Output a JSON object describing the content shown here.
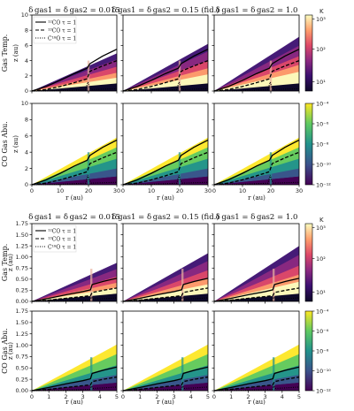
{
  "chart_data": [
    {
      "type": "heatmap",
      "block": "top",
      "row_labels": [
        "Gas Temp.",
        "CO Gas Abu."
      ],
      "col_titles": [
        "δgas1 = δgas2 = 0.015",
        "δgas1 = δgas2 = 0.15 (fid.)",
        "δgas1 = δgas2 = 1.0"
      ],
      "xlabel": "r (au)",
      "ylabel": "z (au)",
      "xlim": [
        0,
        30
      ],
      "ylim_temp": [
        0,
        10
      ],
      "ylim_abu": [
        0,
        10
      ],
      "x_ticks": [
        "0",
        "10",
        "20",
        "30"
      ],
      "y_ticks": [
        "0",
        "2",
        "4",
        "6",
        "8",
        "10"
      ],
      "gap_r": 20,
      "legend": [
        "12CO τ = 1",
        "13CO τ = 1",
        "C18O τ = 1"
      ],
      "legend_location": "top-left",
      "colorbar_temp": {
        "unit": "K",
        "ticks": [
          "10^1",
          "10^2",
          "10^3"
        ],
        "cmap": "inferno"
      },
      "colorbar_abu": {
        "ticks": [
          "10^-4",
          "10^-6",
          "10^-8",
          "10^-10",
          "10^-12"
        ],
        "cmap": "viridis"
      },
      "tau_12co": {
        "r": [
          0,
          5,
          10,
          15,
          19.5,
          20.5,
          25,
          30
        ],
        "z": [
          0,
          0.6,
          1.4,
          2.3,
          3.0,
          3.6,
          4.6,
          5.5
        ]
      },
      "tau_13co": {
        "r": [
          0,
          5,
          10,
          15,
          19.5,
          20.5,
          25,
          30
        ],
        "z": [
          0,
          0.2,
          0.6,
          1.1,
          1.6,
          2.6,
          3.3,
          4.0
        ]
      },
      "tau_c18o": {
        "r": [
          0,
          10,
          19,
          19.8,
          20.2,
          21,
          30
        ],
        "z": [
          0,
          0.05,
          0.2,
          1.2,
          0.6,
          0.2,
          0.3
        ]
      }
    },
    {
      "type": "heatmap",
      "block": "bottom",
      "row_labels": [
        "Gas Temp.",
        "CO Gas Abu."
      ],
      "col_titles": [
        "δgas1 = δgas2 = 0.015",
        "δgas1 = δgas2 = 0.15 (fid.)",
        "δgas1 = δgas2 = 1.0"
      ],
      "xlabel": "r (au)",
      "ylabel": "z (au)",
      "xlim": [
        0,
        5
      ],
      "ylim_temp": [
        0,
        1.75
      ],
      "ylim_abu": [
        0,
        1.75
      ],
      "x_ticks": [
        "0",
        "1",
        "2",
        "3",
        "4",
        "5"
      ],
      "y_ticks": [
        "0.00",
        "0.25",
        "0.50",
        "0.75",
        "1.00",
        "1.25",
        "1.50",
        "1.75"
      ],
      "gap_r": 3.5,
      "legend": [
        "12CO τ = 1",
        "13CO τ = 1",
        "C18O τ = 1"
      ],
      "legend_location": "top-left",
      "colorbar_temp": {
        "unit": "K",
        "ticks": [
          "10^1",
          "10^2",
          "10^3"
        ],
        "cmap": "inferno"
      },
      "colorbar_abu": {
        "ticks": [
          "10^-4",
          "10^-6",
          "10^-8",
          "10^-10",
          "10^-12"
        ],
        "cmap": "viridis"
      },
      "tau_12co": {
        "r": [
          0,
          1,
          2,
          3,
          3.45,
          3.55,
          4.2,
          5
        ],
        "z": [
          0,
          0.07,
          0.15,
          0.22,
          0.26,
          0.38,
          0.45,
          0.52
        ]
      },
      "tau_13co": {
        "r": [
          0,
          1,
          2,
          3,
          3.45,
          3.55,
          4.2,
          5
        ],
        "z": [
          0,
          0.03,
          0.07,
          0.11,
          0.13,
          0.2,
          0.25,
          0.3
        ]
      },
      "tau_c18o": {
        "r": [
          0,
          2,
          3.4,
          3.5,
          3.6,
          4.2,
          5
        ],
        "z": [
          0,
          0.01,
          0.03,
          0.1,
          0.05,
          0.06,
          0.08
        ]
      }
    }
  ],
  "colors": {
    "inferno": [
      "#0d0829",
      "#3b0f70",
      "#8c2981",
      "#de4968",
      "#fe9f6d",
      "#fcfdbf"
    ],
    "viridis": [
      "#fde725",
      "#5ec962",
      "#21918c",
      "#3b528b",
      "#440154"
    ],
    "lines": "#000000"
  }
}
